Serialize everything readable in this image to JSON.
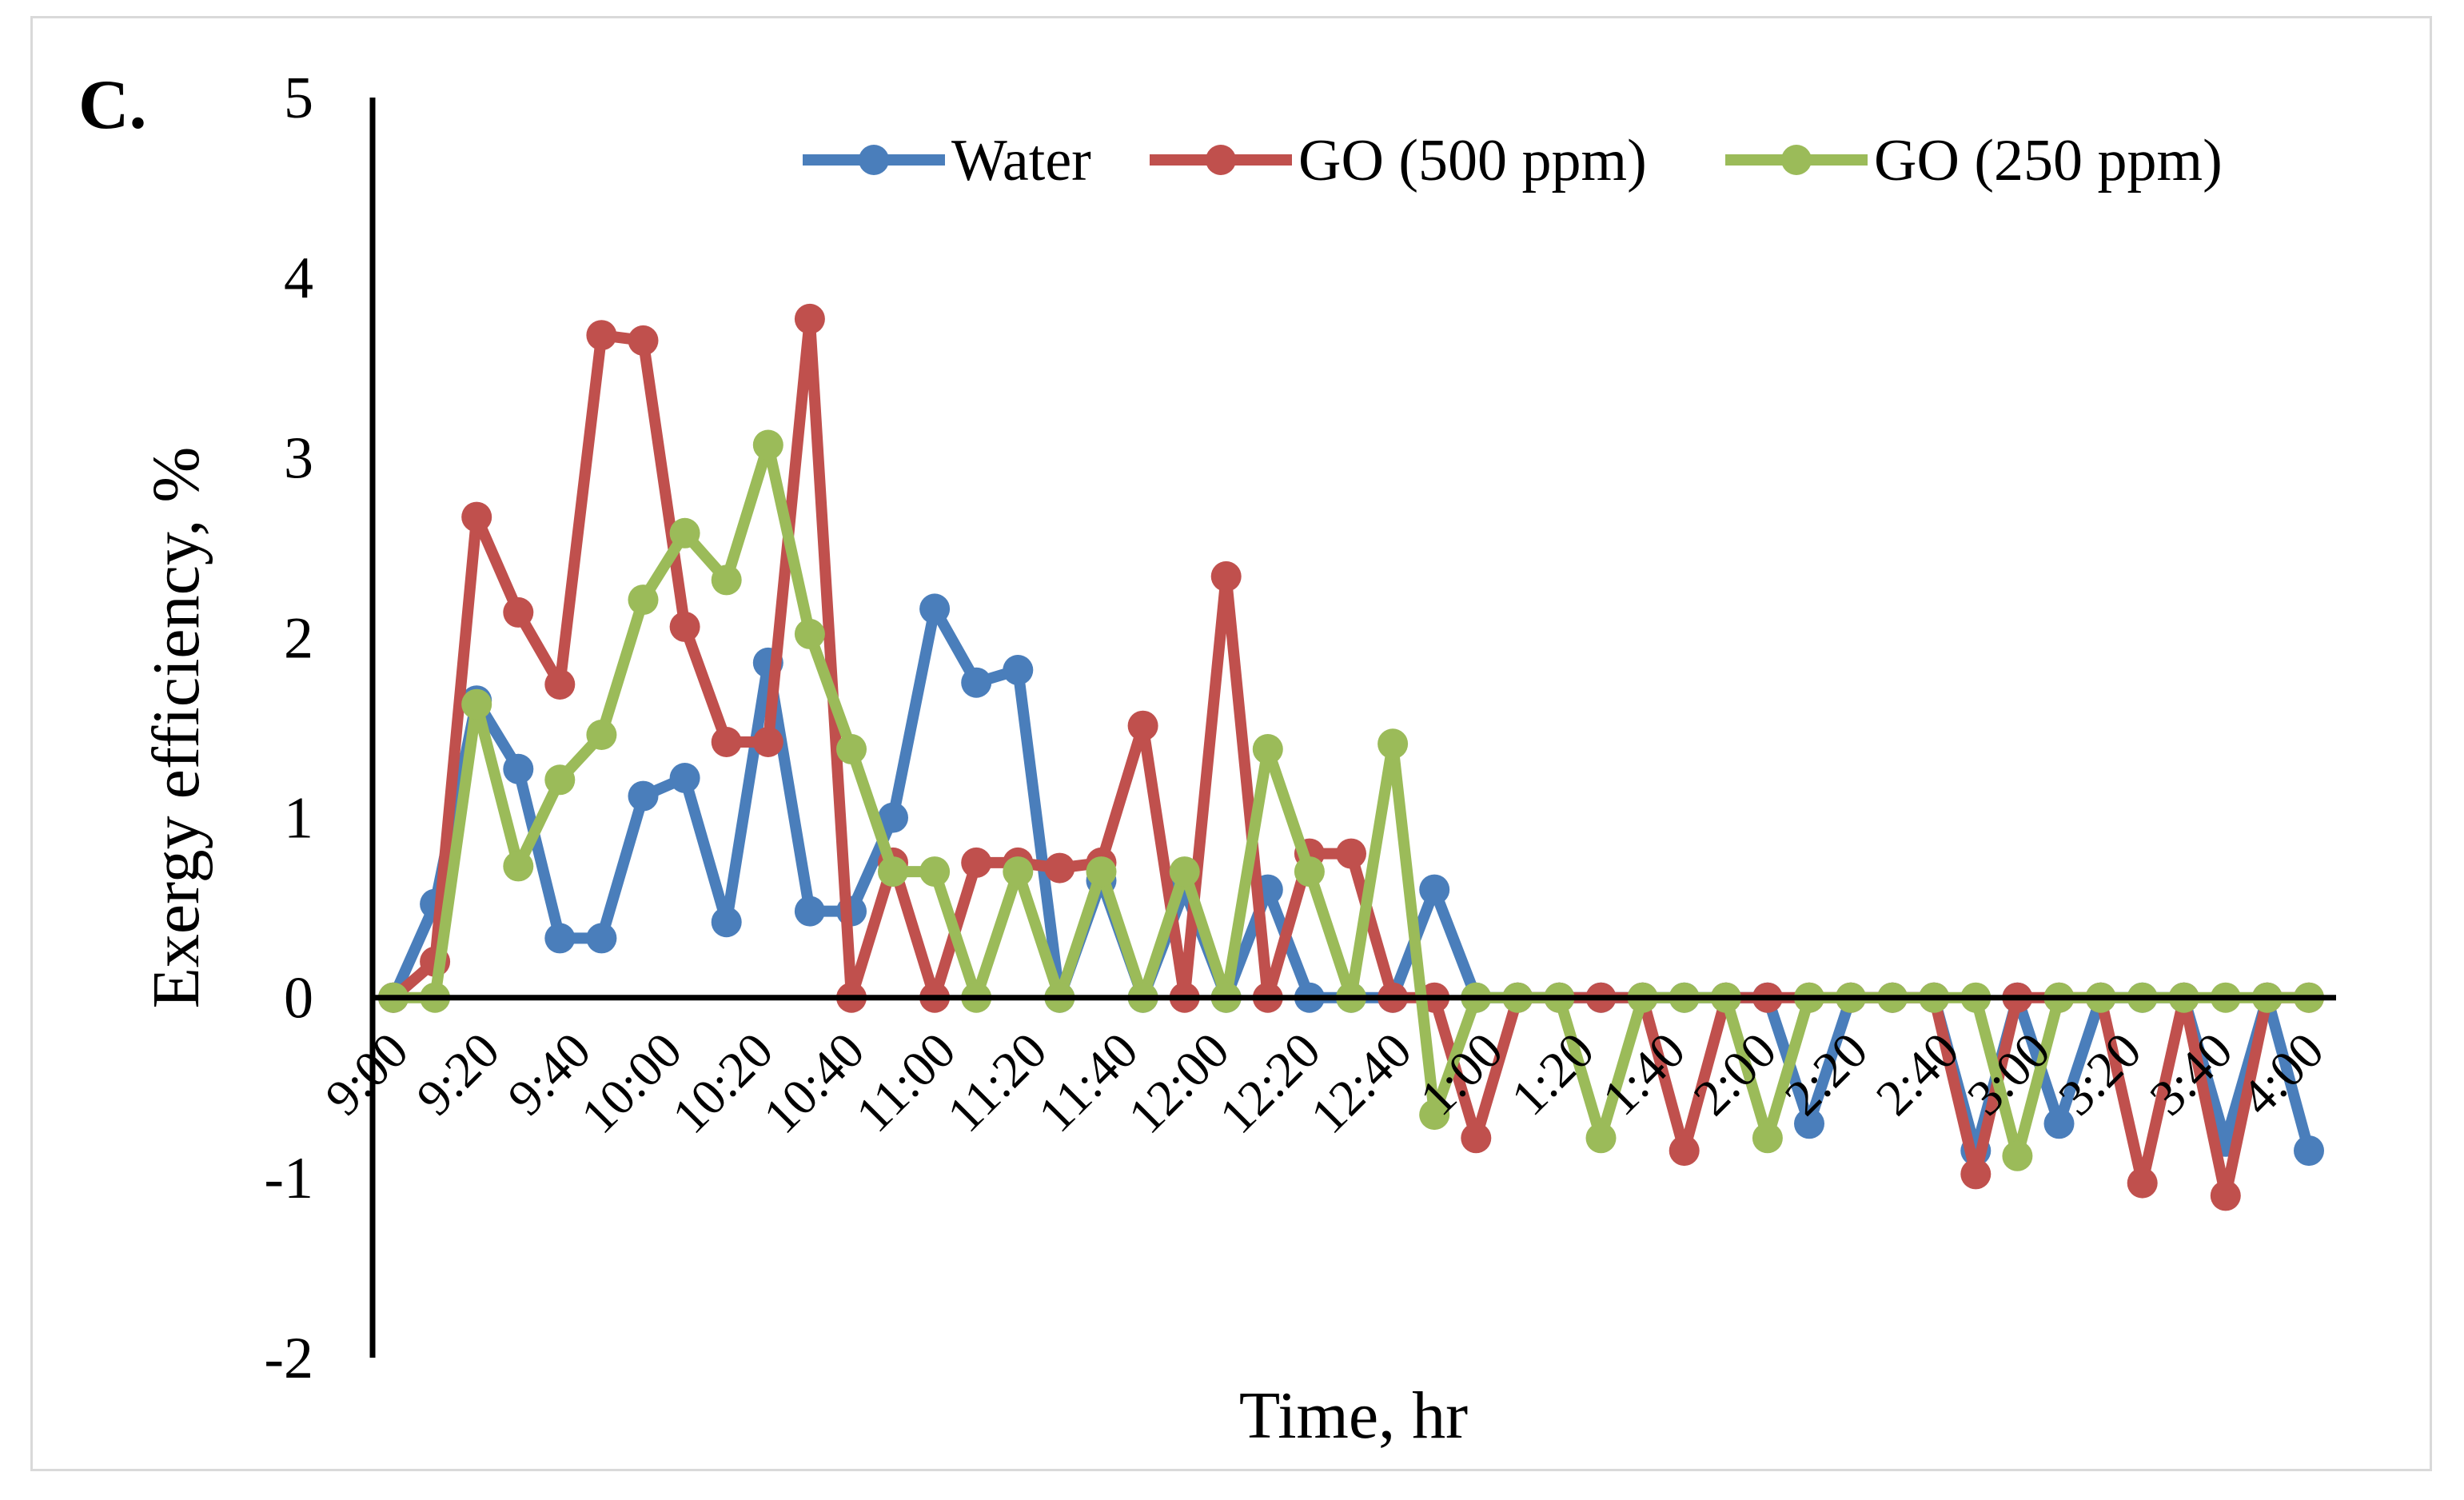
{
  "panel_label": "C.",
  "chart_data": {
    "type": "line",
    "xlabel": "Time, hr",
    "ylabel": "Exergy efficiency, %",
    "ylim": [
      -2,
      5
    ],
    "yticks": [
      "5",
      "4",
      "3",
      "2",
      "1",
      "0",
      "-1",
      "-2"
    ],
    "ytick_values": [
      5,
      4,
      3,
      2,
      1,
      0,
      -1,
      -2
    ],
    "xticks": [
      "9:00",
      "9:20",
      "9:40",
      "10:00",
      "10:20",
      "10:40",
      "11:00",
      "11:20",
      "11:40",
      "12:00",
      "12:20",
      "12:40",
      "1:00",
      "1:20",
      "1:40",
      "2:00",
      "2:20",
      "2:40",
      "3:00",
      "3:20",
      "3:40",
      "4:00"
    ],
    "legend_position": "top",
    "series": [
      {
        "name": "Water",
        "color": "#4a7ebb",
        "values": [
          0,
          0.52,
          1.65,
          1.27,
          0.33,
          0.33,
          1.12,
          1.22,
          0.42,
          1.86,
          0.48,
          0.48,
          1.0,
          2.16,
          1.75,
          1.82,
          0,
          0.65,
          0,
          0.6,
          0,
          0.6,
          0,
          0,
          0,
          0.6,
          0,
          0,
          0,
          0,
          0,
          0,
          0,
          0,
          -0.7,
          0,
          0,
          0,
          -0.85,
          0,
          -0.7,
          0,
          0,
          0,
          -0.8,
          0,
          -0.85
        ]
      },
      {
        "name": "GO (500 ppm)",
        "color": "#c0504d",
        "values": [
          0,
          0.2,
          2.67,
          2.14,
          1.74,
          3.68,
          3.65,
          2.06,
          1.42,
          1.42,
          3.77,
          0,
          0.75,
          0,
          0.75,
          0.75,
          0.72,
          0.75,
          1.51,
          0,
          2.34,
          0,
          0.8,
          0.8,
          0,
          0,
          -0.78,
          0,
          0,
          0,
          0,
          -0.85,
          0,
          0,
          0,
          0,
          0,
          0,
          -0.98,
          0,
          0,
          0,
          -1.03,
          0,
          -1.1,
          0,
          0
        ]
      },
      {
        "name": "GO (250 ppm)",
        "color": "#9bbb59",
        "values": [
          0,
          0,
          1.63,
          0.73,
          1.21,
          1.46,
          2.21,
          2.58,
          2.32,
          3.07,
          2.02,
          1.38,
          0.7,
          0.7,
          0,
          0.7,
          0,
          0.7,
          0,
          0.7,
          0,
          1.38,
          0.7,
          0,
          1.41,
          -0.65,
          0,
          0,
          0,
          -0.78,
          0,
          0,
          0,
          -0.78,
          0,
          0,
          0,
          0,
          0,
          -0.88,
          0,
          0,
          0,
          0,
          0,
          0,
          0
        ]
      }
    ]
  }
}
